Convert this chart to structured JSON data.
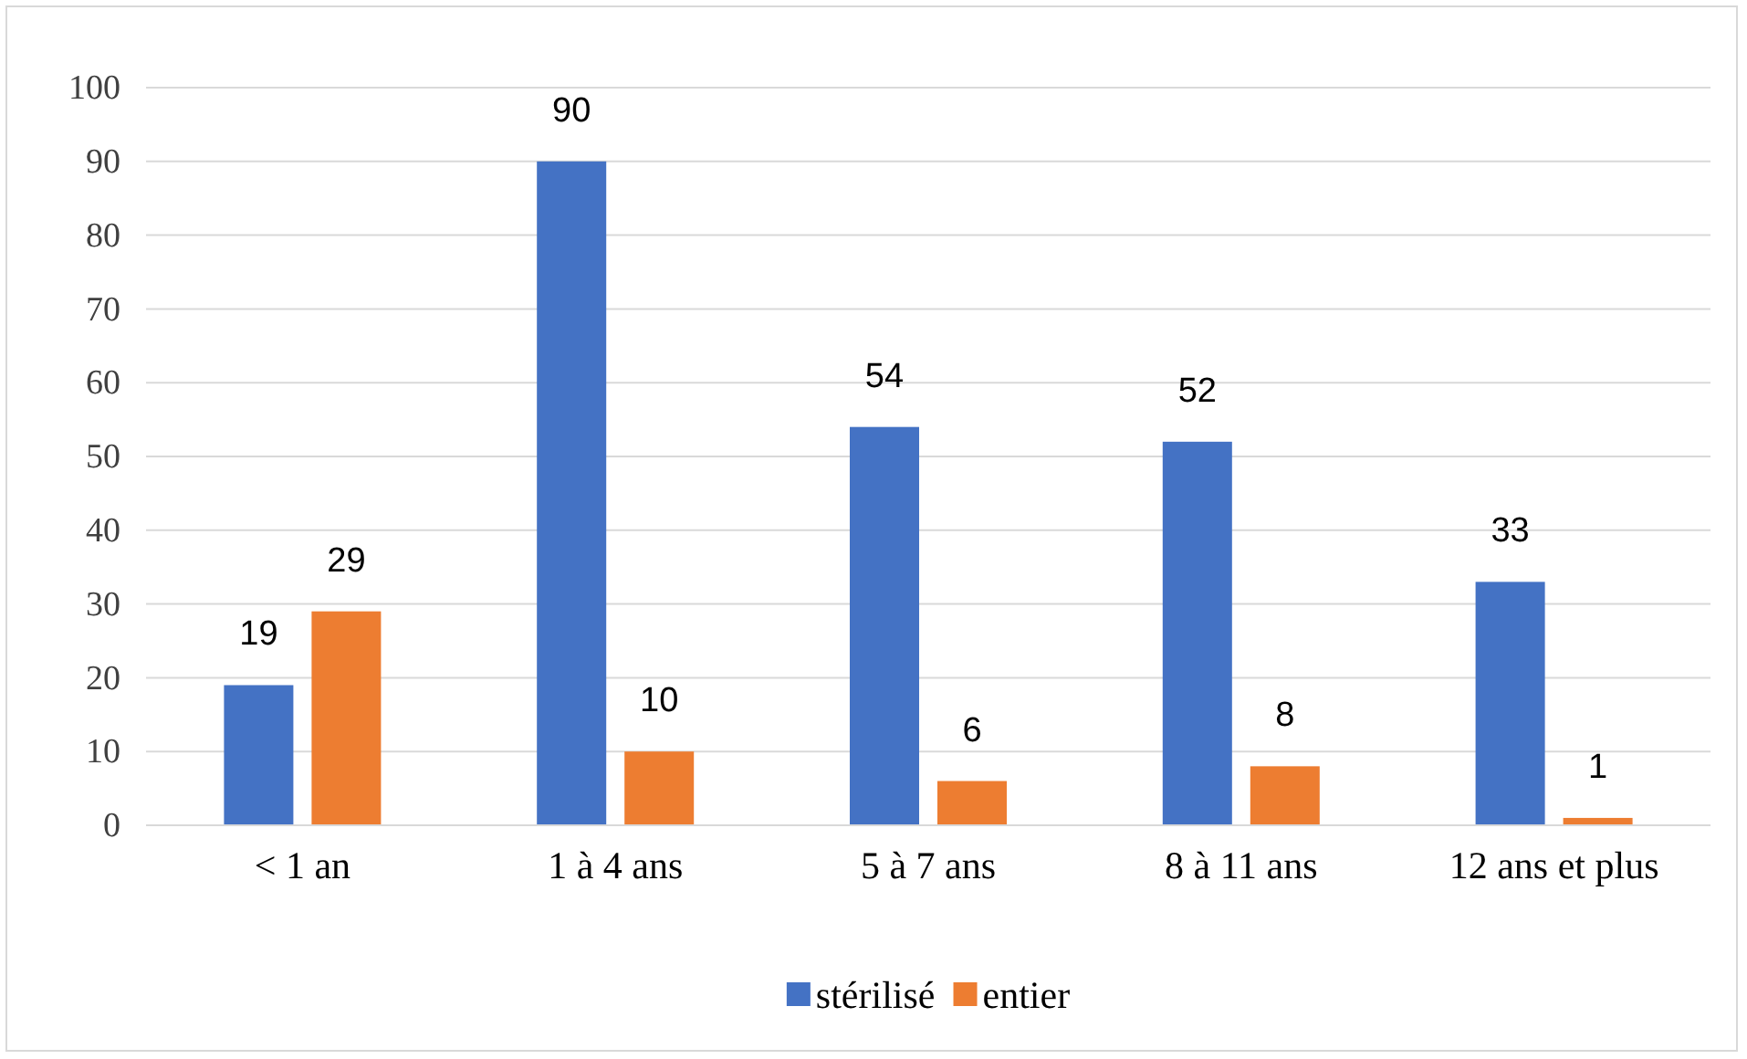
{
  "chart_data": {
    "type": "bar",
    "categories": [
      "< 1 an",
      "1 à 4 ans",
      "5 à 7 ans",
      "8 à 11 ans",
      "12 ans et plus"
    ],
    "series": [
      {
        "name": "stérilisé",
        "color": "#4472c4",
        "values": [
          19,
          90,
          54,
          52,
          33
        ]
      },
      {
        "name": "entier",
        "color": "#ed7d31",
        "values": [
          29,
          10,
          6,
          8,
          1
        ]
      }
    ],
    "ylim": [
      0,
      100
    ],
    "yticks": [
      0,
      10,
      20,
      30,
      40,
      50,
      60,
      70,
      80,
      90,
      100
    ],
    "grid": "y",
    "legend": "bottom",
    "data_labels": true
  }
}
